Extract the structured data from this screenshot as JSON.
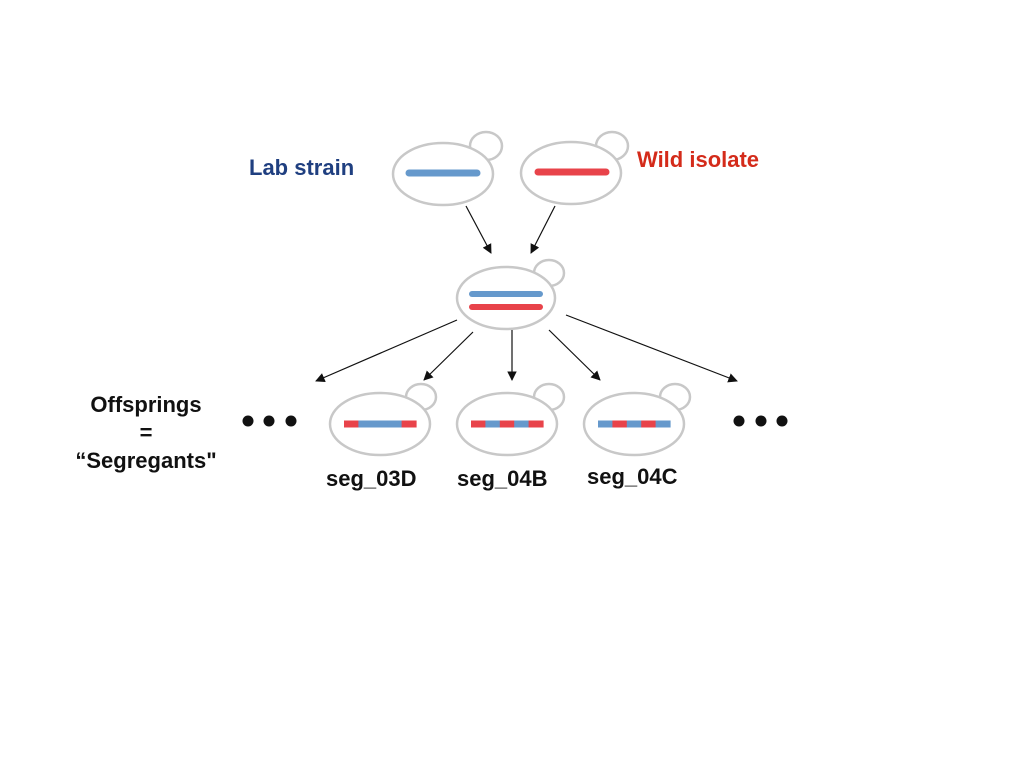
{
  "colors": {
    "lab": "#6699cc",
    "wild": "#e8434a",
    "lab_label": "#1f3f80",
    "wild_label": "#d42b1a",
    "outline": "#c8c8c8",
    "arrow": "#111111",
    "text": "#111111"
  },
  "parents": {
    "lab": {
      "label": "Lab strain",
      "chromosome": "lab"
    },
    "wild": {
      "label": "Wild isolate",
      "chromosome": "wild"
    }
  },
  "hybrid": {
    "chromosomes": [
      "lab",
      "wild"
    ]
  },
  "offspring_label": {
    "line1": "Offsprings",
    "line2": "=",
    "line3": "“Segregants\""
  },
  "ellipsis": "more segregants",
  "segregants": [
    {
      "name": "seg_03D",
      "chromosome": [
        "wild",
        "lab",
        "lab",
        "lab",
        "wild"
      ]
    },
    {
      "name": "seg_04B",
      "chromosome": [
        "wild",
        "lab",
        "wild",
        "lab",
        "wild"
      ]
    },
    {
      "name": "seg_04C",
      "chromosome": [
        "lab",
        "wild",
        "lab",
        "wild",
        "lab"
      ]
    }
  ]
}
